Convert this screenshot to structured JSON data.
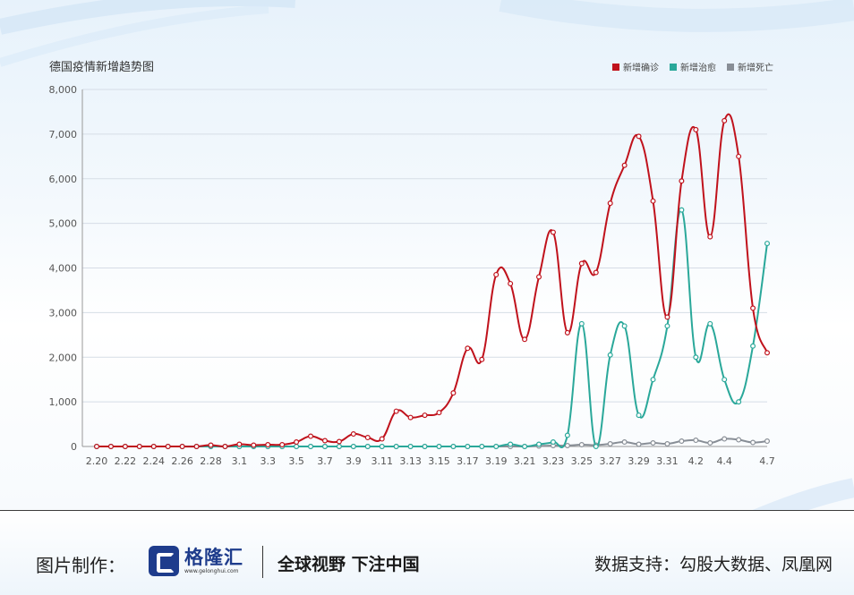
{
  "chart_data": {
    "type": "line",
    "title": "德国疫情新增趋势图",
    "ylim": [
      0,
      8000
    ],
    "yticks": [
      "8,000",
      "7,000",
      "6,000",
      "5,000",
      "4,000",
      "3,000",
      "2,000",
      "1,000",
      "0"
    ],
    "ytick_values": [
      8000,
      7000,
      6000,
      5000,
      4000,
      3000,
      2000,
      1000,
      0
    ],
    "x": [
      "2.20",
      "2.21",
      "2.22",
      "2.23",
      "2.24",
      "2.25",
      "2.26",
      "2.27",
      "2.28",
      "2.29",
      "3.1",
      "3.2",
      "3.3",
      "3.4",
      "3.5",
      "3.6",
      "3.7",
      "3.8",
      "3.9",
      "3.10",
      "3.11",
      "3.12",
      "3.13",
      "3.14",
      "3.15",
      "3.16",
      "3.17",
      "3.18",
      "3.19",
      "3.20",
      "3.21",
      "3.22",
      "3.23",
      "3.24",
      "3.25",
      "3.26",
      "3.27",
      "3.28",
      "3.29",
      "3.30",
      "3.31",
      "4.1",
      "4.2",
      "4.3",
      "4.4",
      "4.5",
      "4.6",
      "4.7"
    ],
    "xtick_labels": [
      "2.20",
      "2.22",
      "2.24",
      "2.26",
      "2.28",
      "3.1",
      "3.3",
      "3.5",
      "3.7",
      "3.9",
      "3.11",
      "3.13",
      "3.15",
      "3.17",
      "3.19",
      "3.21",
      "3.23",
      "3.25",
      "3.27",
      "3.29",
      "3.31",
      "4.2",
      "4.4",
      "4.7"
    ],
    "legend_position": "top-right",
    "grid": true,
    "series": [
      {
        "name": "新增确诊",
        "color": "#c0121c",
        "values": [
          0,
          0,
          0,
          0,
          0,
          0,
          0,
          0,
          30,
          0,
          50,
          30,
          40,
          40,
          100,
          230,
          130,
          110,
          280,
          200,
          170,
          790,
          650,
          700,
          760,
          1200,
          2200,
          1950,
          3850,
          3650,
          2400,
          3800,
          4800,
          2550,
          4100,
          3900,
          5450,
          6300,
          6950,
          5500,
          2900,
          5950,
          7100,
          4700,
          7300,
          6500,
          3100,
          2100
        ]
      },
      {
        "name": "新增治愈",
        "color": "#2aa89a",
        "values": [
          0,
          0,
          0,
          0,
          0,
          0,
          0,
          0,
          0,
          0,
          0,
          0,
          0,
          0,
          0,
          0,
          0,
          0,
          0,
          0,
          0,
          0,
          0,
          0,
          0,
          0,
          0,
          0,
          0,
          50,
          0,
          50,
          100,
          250,
          2750,
          0,
          2050,
          2700,
          700,
          1500,
          2700,
          5300,
          2000,
          2750,
          1500,
          1000,
          2250,
          4550
        ]
      },
      {
        "name": "新增死亡",
        "color": "#888e96",
        "values": [
          0,
          0,
          0,
          0,
          0,
          0,
          0,
          0,
          0,
          0,
          0,
          0,
          0,
          0,
          0,
          0,
          0,
          0,
          0,
          0,
          0,
          0,
          0,
          0,
          0,
          0,
          0,
          0,
          0,
          0,
          0,
          10,
          20,
          20,
          40,
          30,
          60,
          100,
          50,
          80,
          60,
          120,
          140,
          80,
          170,
          150,
          90,
          120
        ]
      }
    ]
  },
  "footer": {
    "made_by_label": "图片制作：",
    "logo_name": "格隆汇",
    "logo_url": "www.gelonghui.com",
    "slogan": "全球视野 下注中国",
    "source": "数据支持：勾股大数据、凤凰网"
  }
}
